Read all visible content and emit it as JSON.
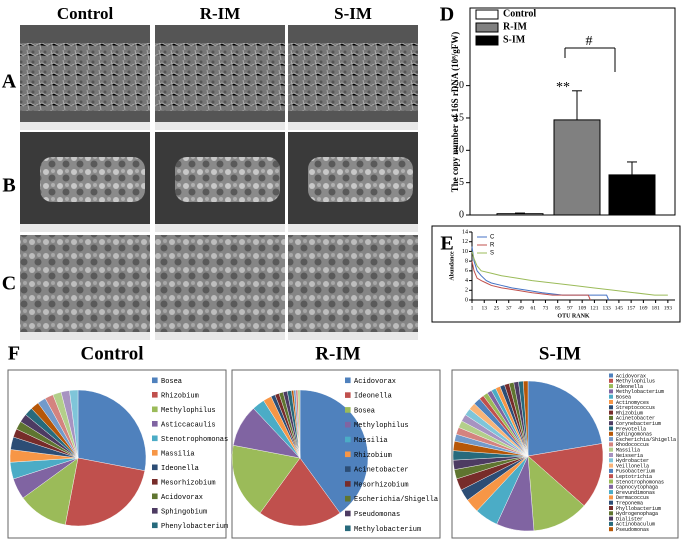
{
  "figure": {
    "columns": [
      "Control",
      "R-IM",
      "S-IM"
    ],
    "rows": [
      "A",
      "B",
      "C"
    ],
    "panels": [
      "D",
      "E",
      "F"
    ]
  },
  "chart_data": [
    {
      "type": "bar",
      "categories": [
        "Control",
        "R-IM",
        "S-IM"
      ],
      "values": [
        0.2,
        14.7,
        6.2
      ],
      "errors": [
        0.1,
        4.5,
        2
      ],
      "colors": [
        "#ffffff",
        "#808080",
        "#000000"
      ],
      "ylim": [
        0,
        32
      ],
      "yticks": [
        0,
        5,
        10,
        15,
        20
      ],
      "ylabel": "The copy number of 16S rDNA (10⁸/gFW)",
      "annotations": [
        "**",
        "#"
      ]
    },
    {
      "type": "line",
      "xlabel": "OTU RANK",
      "ylabel": "Abundance",
      "xlim": [
        1,
        200
      ],
      "ylim": [
        0,
        14
      ],
      "xticks": [
        1,
        13,
        25,
        37,
        49,
        61,
        73,
        85,
        97,
        109,
        121,
        133,
        145,
        157,
        169,
        181,
        193
      ],
      "yticks": [
        0,
        2,
        4,
        6,
        8,
        10,
        12,
        14
      ],
      "series": [
        {
          "name": "C",
          "color": "#4472c4",
          "x": [
            1,
            3,
            6,
            10,
            15,
            20,
            30,
            40,
            55,
            70,
            90,
            110,
            133,
            135
          ],
          "values": [
            11,
            8,
            6,
            5,
            4,
            3.5,
            3,
            2.5,
            2,
            1.5,
            1,
            1,
            1,
            0
          ]
        },
        {
          "name": "R",
          "color": "#c0504d",
          "x": [
            1,
            3,
            6,
            10,
            15,
            20,
            30,
            45,
            60,
            80,
            100,
            115,
            117
          ],
          "values": [
            8,
            6,
            4.5,
            4,
            3.5,
            3,
            2.5,
            2,
            1.5,
            1,
            1,
            1,
            0
          ]
        },
        {
          "name": "S",
          "color": "#9bbb59",
          "x": [
            1,
            3,
            6,
            10,
            20,
            30,
            45,
            60,
            80,
            100,
            120,
            140,
            160,
            180,
            193
          ],
          "values": [
            10,
            8.5,
            7,
            6,
            5.5,
            5,
            4.5,
            4,
            3.5,
            3,
            2.5,
            2,
            1.5,
            1,
            1
          ]
        }
      ]
    },
    {
      "type": "pie",
      "title": "Control",
      "categories": [
        "Bosea",
        "Rhizobium",
        "Methylophilus",
        "Asticcacaulis",
        "Stenotrophomonas",
        "Massilia",
        "Ideonella",
        "Mesorhizobium",
        "Acidovorax",
        "Sphingobium",
        "Phenylobacterium",
        null,
        null,
        null,
        null,
        null,
        null
      ],
      "values": [
        28,
        25,
        12,
        5,
        4,
        3,
        3,
        2,
        2,
        2,
        2,
        2,
        2,
        2,
        2,
        2,
        2
      ]
    },
    {
      "type": "pie",
      "title": "R-IM",
      "categories": [
        "Acidovorax",
        "Ideonella",
        "Bosea",
        "Methylophilus",
        "Massilia",
        "Rhizobium",
        "Acinetobacter",
        "Mesorhizobium",
        "Escherichia/Shigella",
        "Pseudomonas",
        "Methylobacterium",
        null,
        null,
        null,
        null
      ],
      "values": [
        40,
        20,
        18,
        10,
        3,
        2,
        1,
        1,
        1,
        1,
        1,
        0.5,
        0.5,
        0.5,
        0.5
      ]
    },
    {
      "type": "pie",
      "title": "S-IM",
      "categories": [
        "Acidovorax",
        "Methylophilus",
        "Ideonella",
        "Methylobacterium",
        "Bosea",
        "Actinomyces",
        "Streptococcus",
        "Rhizobium",
        "Acinetobacter",
        "Corynebacterium",
        "Prevotella",
        "Sphingomonas",
        "Escherichia/Shigella",
        "Rhodococcus",
        "Massilia",
        "Neisseria",
        "Hydrobacter",
        "Veillonella",
        "Fusobacterium",
        "Leptotrichia",
        "Stenotrophomonas",
        "Capnocytophaga",
        "Brevundimonas",
        "Dermacoccus",
        "Treponema",
        "Phyllobacterium",
        "Hydrogenophaga",
        "Dialister",
        "Actinobaculum",
        "Pseudomonas"
      ],
      "values": [
        22,
        14,
        12,
        8,
        5,
        3,
        2.5,
        2.5,
        2,
        2,
        2,
        2,
        1.5,
        1.5,
        1.5,
        1.5,
        1.5,
        1.5,
        1.5,
        1,
        1,
        1,
        1,
        1,
        1,
        1,
        1,
        1,
        1,
        1
      ]
    }
  ]
}
